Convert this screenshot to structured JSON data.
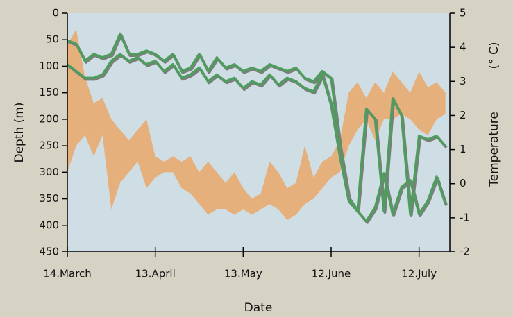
{
  "chart_data": {
    "type": "line",
    "xlabel": "Date",
    "ylabel": "Depth  (m)",
    "y2label": "Temperature",
    "y2unit": "(° C)",
    "xlim": [
      0,
      130.5
    ],
    "xticks": [
      {
        "value": 0,
        "label": "14.March"
      },
      {
        "value": 30,
        "label": "13.April"
      },
      {
        "value": 60,
        "label": "13.May"
      },
      {
        "value": 90,
        "label": "12.June"
      },
      {
        "value": 120,
        "label": "12.July"
      }
    ],
    "ylim": [
      0,
      450
    ],
    "y_inverted": true,
    "yticks": [
      0,
      50,
      100,
      150,
      200,
      250,
      300,
      350,
      400,
      450
    ],
    "y2lim": [
      -2,
      5
    ],
    "y2ticks": [
      -2,
      -1,
      0,
      1,
      2,
      3,
      4,
      5
    ],
    "x": [
      0,
      3,
      6,
      9,
      12,
      15,
      18,
      21,
      24,
      27,
      30,
      33,
      36,
      39,
      42,
      45,
      48,
      51,
      54,
      57,
      60,
      63,
      66,
      69,
      72,
      75,
      78,
      81,
      84,
      87,
      90,
      93,
      96,
      99,
      102,
      105,
      108,
      111,
      114,
      117,
      120,
      123,
      126,
      129
    ],
    "series": [
      {
        "type": "range-area",
        "color": "#e6b07c",
        "low": [
          60,
          30,
          120,
          170,
          160,
          200,
          220,
          240,
          220,
          200,
          270,
          280,
          270,
          280,
          270,
          300,
          280,
          300,
          320,
          300,
          330,
          350,
          340,
          280,
          300,
          330,
          320,
          250,
          310,
          280,
          270,
          240,
          150,
          130,
          160,
          130,
          150,
          110,
          130,
          150,
          110,
          140,
          130,
          150
        ],
        "high": [
          300,
          250,
          230,
          270,
          230,
          370,
          320,
          300,
          280,
          330,
          310,
          300,
          300,
          330,
          340,
          360,
          380,
          370,
          370,
          380,
          370,
          380,
          370,
          360,
          370,
          390,
          380,
          360,
          350,
          330,
          310,
          300,
          250,
          220,
          200,
          240,
          200,
          200,
          190,
          200,
          220,
          230,
          200,
          190
        ]
      },
      {
        "type": "line",
        "axis": "y2",
        "color": "#4f9d5e",
        "values": [
          4.2,
          4.1,
          3.6,
          3.8,
          3.7,
          3.8,
          4.4,
          3.8,
          3.8,
          3.9,
          3.8,
          3.6,
          3.8,
          3.3,
          3.4,
          3.8,
          3.3,
          3.7,
          3.4,
          3.5,
          3.3,
          3.4,
          3.3,
          3.5,
          3.4,
          3.3,
          3.4,
          3.1,
          3.0,
          3.3,
          3.1,
          1.1,
          -0.4,
          -0.8,
          2.2,
          1.9,
          -0.8,
          2.5,
          2.0,
          -0.9,
          1.4,
          1.3,
          1.4,
          1.1
        ]
      },
      {
        "type": "line",
        "axis": "y2",
        "color": "#4f9d5e",
        "values": [
          3.5,
          3.3,
          3.1,
          3.1,
          3.2,
          3.6,
          3.8,
          3.6,
          3.7,
          3.5,
          3.6,
          3.3,
          3.5,
          3.1,
          3.2,
          3.4,
          3.0,
          3.2,
          3.0,
          3.1,
          2.8,
          3.0,
          2.9,
          3.2,
          2.9,
          3.1,
          3.0,
          2.8,
          2.7,
          3.2,
          2.3,
          0.8,
          -0.5,
          -0.8,
          -1.1,
          -0.7,
          0.3,
          -0.9,
          -0.1,
          0.1,
          -0.9,
          -0.5,
          0.2,
          -0.6
        ]
      }
    ]
  }
}
